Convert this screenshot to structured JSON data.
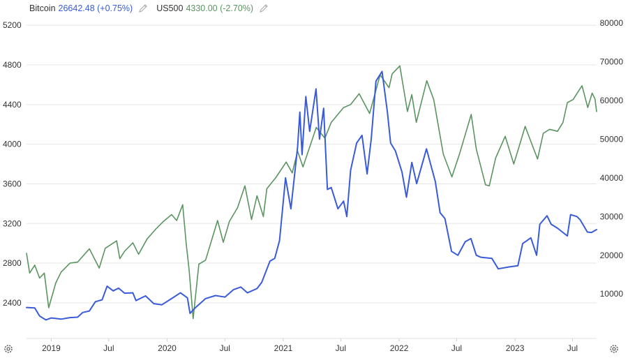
{
  "legend": {
    "btc_name": "Bitcoin",
    "btc_value": "26642.48 (+0.75%)",
    "spx_name": "US500",
    "spx_value": "4330.00 (-2.70%)"
  },
  "colors": {
    "btc": "#3a5bd9",
    "spx": "#5a9460",
    "grid": "#e6e6e6",
    "text": "#333333"
  },
  "icons": {
    "edit": "pencil-icon",
    "settings": "gear-icon"
  },
  "chart_data": {
    "type": "line",
    "title": "",
    "left_axis": {
      "series": "US500",
      "ticks": [
        2400,
        2800,
        3200,
        3600,
        4000,
        4400,
        4800,
        5200
      ],
      "ylim": [
        2040,
        5300
      ]
    },
    "right_axis": {
      "series": "Bitcoin",
      "ticks": [
        10000,
        20000,
        30000,
        40000,
        50000,
        60000,
        70000,
        80000
      ],
      "ylim": [
        -1500,
        82000
      ]
    },
    "x_axis": {
      "range": [
        "2018-10-15",
        "2023-09-15"
      ],
      "ticks": [
        {
          "label": "2019",
          "date": "2019-01-01"
        },
        {
          "label": "Jul",
          "date": "2019-07-01"
        },
        {
          "label": "2020",
          "date": "2020-01-01"
        },
        {
          "label": "Jul",
          "date": "2020-07-01"
        },
        {
          "label": "2021",
          "date": "2021-01-01"
        },
        {
          "label": "Jul",
          "date": "2021-07-01"
        },
        {
          "label": "2022",
          "date": "2022-01-01"
        },
        {
          "label": "Jul",
          "date": "2022-07-01"
        },
        {
          "label": "2023",
          "date": "2023-01-01"
        },
        {
          "label": "Jul",
          "date": "2023-07-01"
        }
      ]
    },
    "series": [
      {
        "name": "Bitcoin",
        "axis": "right",
        "color": "#3a5bd9",
        "points": [
          [
            "2018-10-15",
            6500
          ],
          [
            "2018-11-10",
            6400
          ],
          [
            "2018-11-25",
            4300
          ],
          [
            "2018-12-15",
            3300
          ],
          [
            "2019-01-01",
            3800
          ],
          [
            "2019-02-01",
            3500
          ],
          [
            "2019-03-01",
            3900
          ],
          [
            "2019-03-25",
            4000
          ],
          [
            "2019-04-10",
            5200
          ],
          [
            "2019-05-01",
            5600
          ],
          [
            "2019-05-20",
            8000
          ],
          [
            "2019-06-10",
            8500
          ],
          [
            "2019-06-26",
            12000
          ],
          [
            "2019-07-15",
            10800
          ],
          [
            "2019-08-01",
            11500
          ],
          [
            "2019-08-20",
            10200
          ],
          [
            "2019-09-15",
            10300
          ],
          [
            "2019-09-25",
            8300
          ],
          [
            "2019-10-25",
            9500
          ],
          [
            "2019-11-20",
            7500
          ],
          [
            "2019-12-15",
            7200
          ],
          [
            "2020-01-15",
            8800
          ],
          [
            "2020-02-12",
            10300
          ],
          [
            "2020-03-05",
            9000
          ],
          [
            "2020-03-13",
            5000
          ],
          [
            "2020-04-01",
            6600
          ],
          [
            "2020-05-01",
            8800
          ],
          [
            "2020-06-01",
            9600
          ],
          [
            "2020-07-01",
            9200
          ],
          [
            "2020-07-28",
            11100
          ],
          [
            "2020-08-20",
            11800
          ],
          [
            "2020-09-10",
            10300
          ],
          [
            "2020-10-10",
            11400
          ],
          [
            "2020-10-25",
            13000
          ],
          [
            "2020-11-20",
            18500
          ],
          [
            "2020-12-05",
            19200
          ],
          [
            "2020-12-20",
            23800
          ],
          [
            "2021-01-08",
            40000
          ],
          [
            "2021-01-25",
            32000
          ],
          [
            "2021-02-15",
            48000
          ],
          [
            "2021-02-22",
            57000
          ],
          [
            "2021-03-01",
            46000
          ],
          [
            "2021-03-13",
            61000
          ],
          [
            "2021-03-25",
            52000
          ],
          [
            "2021-04-14",
            63000
          ],
          [
            "2021-04-25",
            50000
          ],
          [
            "2021-05-08",
            58000
          ],
          [
            "2021-05-20",
            37000
          ],
          [
            "2021-06-01",
            37500
          ],
          [
            "2021-06-22",
            32000
          ],
          [
            "2021-07-10",
            34000
          ],
          [
            "2021-07-20",
            30000
          ],
          [
            "2021-08-01",
            42000
          ],
          [
            "2021-08-20",
            49000
          ],
          [
            "2021-09-06",
            51000
          ],
          [
            "2021-09-22",
            41000
          ],
          [
            "2021-10-05",
            50000
          ],
          [
            "2021-10-20",
            65000
          ],
          [
            "2021-11-08",
            67500
          ],
          [
            "2021-11-25",
            57000
          ],
          [
            "2021-12-05",
            49000
          ],
          [
            "2021-12-20",
            47000
          ],
          [
            "2022-01-10",
            41500
          ],
          [
            "2022-01-24",
            35000
          ],
          [
            "2022-02-10",
            44000
          ],
          [
            "2022-02-25",
            38500
          ],
          [
            "2022-03-28",
            47500
          ],
          [
            "2022-04-25",
            39000
          ],
          [
            "2022-05-10",
            31000
          ],
          [
            "2022-05-25",
            29500
          ],
          [
            "2022-06-15",
            21000
          ],
          [
            "2022-07-05",
            20000
          ],
          [
            "2022-07-28",
            23500
          ],
          [
            "2022-08-15",
            24300
          ],
          [
            "2022-09-01",
            20000
          ],
          [
            "2022-09-15",
            19500
          ],
          [
            "2022-10-20",
            19200
          ],
          [
            "2022-11-09",
            16500
          ],
          [
            "2022-12-15",
            17000
          ],
          [
            "2023-01-10",
            17300
          ],
          [
            "2023-01-25",
            23000
          ],
          [
            "2023-02-20",
            24500
          ],
          [
            "2023-03-10",
            20000
          ],
          [
            "2023-03-20",
            28000
          ],
          [
            "2023-04-12",
            30200
          ],
          [
            "2023-04-25",
            28000
          ],
          [
            "2023-05-15",
            27000
          ],
          [
            "2023-06-15",
            25000
          ],
          [
            "2023-06-25",
            30500
          ],
          [
            "2023-07-15",
            30000
          ],
          [
            "2023-07-25",
            29200
          ],
          [
            "2023-08-17",
            26000
          ],
          [
            "2023-08-30",
            25900
          ],
          [
            "2023-09-15",
            26642
          ]
        ]
      },
      {
        "name": "US500",
        "axis": "left",
        "color": "#5a9460",
        "points": [
          [
            "2018-10-15",
            2900
          ],
          [
            "2018-10-25",
            2700
          ],
          [
            "2018-11-10",
            2780
          ],
          [
            "2018-11-25",
            2650
          ],
          [
            "2018-12-10",
            2700
          ],
          [
            "2018-12-24",
            2350
          ],
          [
            "2019-01-15",
            2600
          ],
          [
            "2019-02-01",
            2710
          ],
          [
            "2019-03-01",
            2800
          ],
          [
            "2019-03-25",
            2810
          ],
          [
            "2019-05-01",
            2945
          ],
          [
            "2019-06-01",
            2750
          ],
          [
            "2019-06-20",
            2950
          ],
          [
            "2019-07-26",
            3025
          ],
          [
            "2019-08-05",
            2845
          ],
          [
            "2019-08-20",
            2920
          ],
          [
            "2019-09-15",
            3005
          ],
          [
            "2019-10-03",
            2890
          ],
          [
            "2019-10-30",
            3045
          ],
          [
            "2019-11-28",
            3150
          ],
          [
            "2019-12-20",
            3220
          ],
          [
            "2020-01-15",
            3290
          ],
          [
            "2020-01-31",
            3230
          ],
          [
            "2020-02-19",
            3390
          ],
          [
            "2020-03-01",
            3000
          ],
          [
            "2020-03-10",
            2740
          ],
          [
            "2020-03-23",
            2240
          ],
          [
            "2020-04-10",
            2790
          ],
          [
            "2020-05-01",
            2830
          ],
          [
            "2020-06-08",
            3230
          ],
          [
            "2020-06-26",
            3010
          ],
          [
            "2020-07-15",
            3220
          ],
          [
            "2020-08-10",
            3360
          ],
          [
            "2020-09-02",
            3580
          ],
          [
            "2020-09-23",
            3240
          ],
          [
            "2020-10-10",
            3480
          ],
          [
            "2020-10-30",
            3270
          ],
          [
            "2020-11-10",
            3550
          ],
          [
            "2020-12-10",
            3670
          ],
          [
            "2021-01-10",
            3820
          ],
          [
            "2021-01-29",
            3710
          ],
          [
            "2021-02-15",
            3930
          ],
          [
            "2021-03-04",
            3770
          ],
          [
            "2021-04-15",
            4170
          ],
          [
            "2021-05-12",
            4060
          ],
          [
            "2021-06-01",
            4220
          ],
          [
            "2021-07-10",
            4370
          ],
          [
            "2021-08-01",
            4400
          ],
          [
            "2021-08-28",
            4510
          ],
          [
            "2021-09-30",
            4310
          ],
          [
            "2021-11-02",
            4700
          ],
          [
            "2021-11-30",
            4570
          ],
          [
            "2021-12-10",
            4710
          ],
          [
            "2022-01-03",
            4790
          ],
          [
            "2022-01-27",
            4330
          ],
          [
            "2022-02-10",
            4500
          ],
          [
            "2022-02-24",
            4220
          ],
          [
            "2022-03-29",
            4640
          ],
          [
            "2022-04-20",
            4450
          ],
          [
            "2022-05-20",
            3900
          ],
          [
            "2022-06-16",
            3670
          ],
          [
            "2022-07-10",
            3900
          ],
          [
            "2022-08-16",
            4300
          ],
          [
            "2022-09-01",
            3950
          ],
          [
            "2022-09-30",
            3590
          ],
          [
            "2022-10-12",
            3580
          ],
          [
            "2022-11-01",
            3860
          ],
          [
            "2022-12-01",
            4080
          ],
          [
            "2022-12-28",
            3800
          ],
          [
            "2023-01-15",
            3990
          ],
          [
            "2023-02-02",
            4180
          ],
          [
            "2023-03-13",
            3850
          ],
          [
            "2023-03-31",
            4110
          ],
          [
            "2023-04-20",
            4150
          ],
          [
            "2023-05-15",
            4130
          ],
          [
            "2023-06-01",
            4220
          ],
          [
            "2023-06-15",
            4420
          ],
          [
            "2023-07-03",
            4450
          ],
          [
            "2023-07-31",
            4590
          ],
          [
            "2023-08-18",
            4370
          ],
          [
            "2023-09-01",
            4515
          ],
          [
            "2023-09-10",
            4457
          ],
          [
            "2023-09-15",
            4330
          ]
        ]
      }
    ]
  }
}
